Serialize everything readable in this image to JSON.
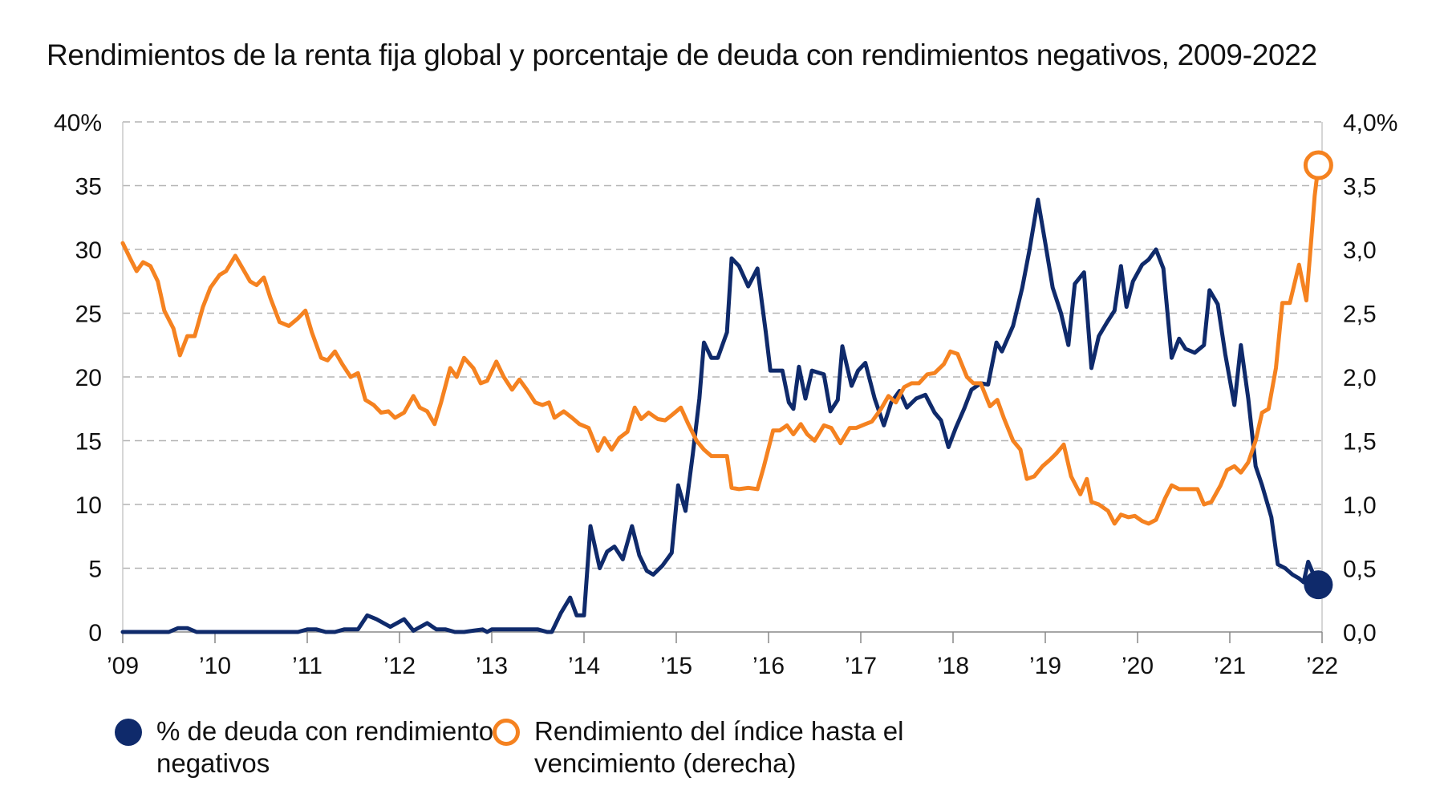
{
  "chart_data": {
    "type": "line",
    "title": "Rendimientos de la renta fija global y porcentaje de deuda con rendimientos negativos, 2009-2022",
    "x_ticks": [
      "’09",
      "’10",
      "’11",
      "’12",
      "’13",
      "’14",
      "’15",
      "’16",
      "’17",
      "’18",
      "’19",
      "’20",
      "’21",
      "’22"
    ],
    "x_range": [
      2009.0,
      2022.0
    ],
    "y_left": {
      "ylim": [
        0,
        40
      ],
      "ticks": [
        "0",
        "5",
        "10",
        "15",
        "20",
        "25",
        "30",
        "35",
        "40%"
      ]
    },
    "y_right": {
      "ylim": [
        0,
        4
      ],
      "ticks": [
        "0,0",
        "0,5",
        "1,0",
        "1,5",
        "2,0",
        "2,5",
        "3,0",
        "3,5",
        "4,0%"
      ]
    },
    "grid": true,
    "legend_position": "bottom",
    "series": [
      {
        "name": "% de deuda con rendimientos negativos",
        "color": "#0f2a6b",
        "axis": "left",
        "points": [
          [
            2009.0,
            0
          ],
          [
            2009.5,
            0
          ],
          [
            2009.6,
            0.3
          ],
          [
            2009.7,
            0.3
          ],
          [
            2009.8,
            0
          ],
          [
            2010.0,
            0
          ],
          [
            2010.5,
            0
          ],
          [
            2010.9,
            0
          ],
          [
            2011.0,
            0.2
          ],
          [
            2011.1,
            0.2
          ],
          [
            2011.2,
            0
          ],
          [
            2011.3,
            0
          ],
          [
            2011.4,
            0.2
          ],
          [
            2011.55,
            0.2
          ],
          [
            2011.65,
            1.3
          ],
          [
            2011.75,
            1.0
          ],
          [
            2011.9,
            0.4
          ],
          [
            2012.05,
            1.0
          ],
          [
            2012.15,
            0.1
          ],
          [
            2012.3,
            0.7
          ],
          [
            2012.4,
            0.2
          ],
          [
            2012.5,
            0.2
          ],
          [
            2012.6,
            0.0
          ],
          [
            2012.7,
            0.0
          ],
          [
            2012.8,
            0.1
          ],
          [
            2012.9,
            0.2
          ],
          [
            2012.95,
            0.0
          ],
          [
            2013.0,
            0.2
          ],
          [
            2013.5,
            0.2
          ],
          [
            2013.6,
            0.0
          ],
          [
            2013.65,
            0.0
          ],
          [
            2013.75,
            1.5
          ],
          [
            2013.85,
            2.7
          ],
          [
            2013.92,
            1.3
          ],
          [
            2014.0,
            1.3
          ],
          [
            2014.07,
            8.3
          ],
          [
            2014.17,
            5.0
          ],
          [
            2014.25,
            6.3
          ],
          [
            2014.33,
            6.7
          ],
          [
            2014.42,
            5.7
          ],
          [
            2014.52,
            8.3
          ],
          [
            2014.6,
            6.0
          ],
          [
            2014.68,
            4.8
          ],
          [
            2014.75,
            4.5
          ],
          [
            2014.85,
            5.2
          ],
          [
            2014.95,
            6.2
          ],
          [
            2015.02,
            11.5
          ],
          [
            2015.1,
            9.5
          ],
          [
            2015.18,
            14.0
          ],
          [
            2015.25,
            18.3
          ],
          [
            2015.3,
            22.7
          ],
          [
            2015.38,
            21.5
          ],
          [
            2015.45,
            21.5
          ],
          [
            2015.55,
            23.5
          ],
          [
            2015.6,
            29.3
          ],
          [
            2015.68,
            28.7
          ],
          [
            2015.78,
            27.1
          ],
          [
            2015.88,
            28.5
          ],
          [
            2015.97,
            23.5
          ],
          [
            2016.02,
            20.5
          ],
          [
            2016.15,
            20.5
          ],
          [
            2016.22,
            18.0
          ],
          [
            2016.27,
            17.5
          ],
          [
            2016.33,
            20.8
          ],
          [
            2016.4,
            18.3
          ],
          [
            2016.47,
            20.5
          ],
          [
            2016.6,
            20.2
          ],
          [
            2016.67,
            17.3
          ],
          [
            2016.75,
            18.2
          ],
          [
            2016.8,
            22.4
          ],
          [
            2016.9,
            19.3
          ],
          [
            2016.97,
            20.5
          ],
          [
            2017.05,
            21.1
          ],
          [
            2017.15,
            18.3
          ],
          [
            2017.25,
            16.2
          ],
          [
            2017.33,
            18.0
          ],
          [
            2017.42,
            18.9
          ],
          [
            2017.5,
            17.6
          ],
          [
            2017.6,
            18.3
          ],
          [
            2017.7,
            18.6
          ],
          [
            2017.8,
            17.2
          ],
          [
            2017.87,
            16.6
          ],
          [
            2017.95,
            14.5
          ],
          [
            2018.03,
            16.0
          ],
          [
            2018.12,
            17.5
          ],
          [
            2018.2,
            19.0
          ],
          [
            2018.3,
            19.5
          ],
          [
            2018.38,
            19.4
          ],
          [
            2018.47,
            22.7
          ],
          [
            2018.53,
            22.0
          ],
          [
            2018.65,
            24.0
          ],
          [
            2018.75,
            27.0
          ],
          [
            2018.83,
            30.0
          ],
          [
            2018.92,
            33.9
          ],
          [
            2019.0,
            30.5
          ],
          [
            2019.08,
            27.0
          ],
          [
            2019.17,
            25.0
          ],
          [
            2019.25,
            22.5
          ],
          [
            2019.32,
            27.3
          ],
          [
            2019.42,
            28.2
          ],
          [
            2019.5,
            20.7
          ],
          [
            2019.58,
            23.2
          ],
          [
            2019.67,
            24.3
          ],
          [
            2019.75,
            25.2
          ],
          [
            2019.82,
            28.7
          ],
          [
            2019.88,
            25.5
          ],
          [
            2019.95,
            27.5
          ],
          [
            2020.05,
            28.8
          ],
          [
            2020.12,
            29.2
          ],
          [
            2020.2,
            30.0
          ],
          [
            2020.28,
            28.5
          ],
          [
            2020.37,
            21.5
          ],
          [
            2020.45,
            23.0
          ],
          [
            2020.52,
            22.2
          ],
          [
            2020.62,
            21.9
          ],
          [
            2020.72,
            22.5
          ],
          [
            2020.78,
            26.8
          ],
          [
            2020.87,
            25.7
          ],
          [
            2020.95,
            21.8
          ],
          [
            2021.05,
            17.8
          ],
          [
            2021.12,
            22.5
          ],
          [
            2021.2,
            18.3
          ],
          [
            2021.28,
            13.0
          ],
          [
            2021.35,
            11.5
          ],
          [
            2021.45,
            9.0
          ],
          [
            2021.52,
            5.3
          ],
          [
            2021.6,
            5.0
          ],
          [
            2021.68,
            4.5
          ],
          [
            2021.75,
            4.2
          ],
          [
            2021.8,
            3.9
          ],
          [
            2021.85,
            5.5
          ],
          [
            2021.92,
            4.3
          ],
          [
            2021.96,
            3.7
          ]
        ],
        "end_marker": "filled-circle"
      },
      {
        "name": "Rendimiento del índice hasta el vencimiento (derecha)",
        "color": "#f58220",
        "axis": "right",
        "points": [
          [
            2009.0,
            3.05
          ],
          [
            2009.08,
            2.93
          ],
          [
            2009.15,
            2.83
          ],
          [
            2009.22,
            2.9
          ],
          [
            2009.3,
            2.87
          ],
          [
            2009.38,
            2.75
          ],
          [
            2009.45,
            2.52
          ],
          [
            2009.55,
            2.38
          ],
          [
            2009.62,
            2.17
          ],
          [
            2009.7,
            2.32
          ],
          [
            2009.78,
            2.32
          ],
          [
            2009.87,
            2.55
          ],
          [
            2009.95,
            2.7
          ],
          [
            2010.05,
            2.8
          ],
          [
            2010.12,
            2.83
          ],
          [
            2010.22,
            2.95
          ],
          [
            2010.3,
            2.85
          ],
          [
            2010.38,
            2.75
          ],
          [
            2010.45,
            2.72
          ],
          [
            2010.53,
            2.78
          ],
          [
            2010.6,
            2.62
          ],
          [
            2010.7,
            2.43
          ],
          [
            2010.8,
            2.4
          ],
          [
            2010.9,
            2.46
          ],
          [
            2010.98,
            2.52
          ],
          [
            2011.05,
            2.35
          ],
          [
            2011.15,
            2.15
          ],
          [
            2011.22,
            2.13
          ],
          [
            2011.3,
            2.2
          ],
          [
            2011.38,
            2.1
          ],
          [
            2011.47,
            2.0
          ],
          [
            2011.55,
            2.03
          ],
          [
            2011.63,
            1.82
          ],
          [
            2011.72,
            1.78
          ],
          [
            2011.8,
            1.72
          ],
          [
            2011.88,
            1.73
          ],
          [
            2011.95,
            1.68
          ],
          [
            2012.05,
            1.72
          ],
          [
            2012.15,
            1.85
          ],
          [
            2012.22,
            1.76
          ],
          [
            2012.3,
            1.73
          ],
          [
            2012.38,
            1.63
          ],
          [
            2012.45,
            1.8
          ],
          [
            2012.55,
            2.07
          ],
          [
            2012.62,
            2.0
          ],
          [
            2012.7,
            2.15
          ],
          [
            2012.8,
            2.07
          ],
          [
            2012.88,
            1.95
          ],
          [
            2012.95,
            1.97
          ],
          [
            2013.05,
            2.12
          ],
          [
            2013.13,
            2.0
          ],
          [
            2013.22,
            1.9
          ],
          [
            2013.3,
            1.98
          ],
          [
            2013.38,
            1.9
          ],
          [
            2013.47,
            1.8
          ],
          [
            2013.55,
            1.78
          ],
          [
            2013.62,
            1.8
          ],
          [
            2013.68,
            1.68
          ],
          [
            2013.78,
            1.73
          ],
          [
            2013.87,
            1.68
          ],
          [
            2013.95,
            1.63
          ],
          [
            2014.05,
            1.6
          ],
          [
            2014.15,
            1.42
          ],
          [
            2014.22,
            1.52
          ],
          [
            2014.3,
            1.43
          ],
          [
            2014.38,
            1.52
          ],
          [
            2014.47,
            1.57
          ],
          [
            2014.55,
            1.76
          ],
          [
            2014.62,
            1.67
          ],
          [
            2014.7,
            1.72
          ],
          [
            2014.8,
            1.67
          ],
          [
            2014.88,
            1.66
          ],
          [
            2014.95,
            1.7
          ],
          [
            2015.05,
            1.76
          ],
          [
            2015.13,
            1.63
          ],
          [
            2015.22,
            1.5
          ],
          [
            2015.3,
            1.43
          ],
          [
            2015.38,
            1.38
          ],
          [
            2015.45,
            1.38
          ],
          [
            2015.55,
            1.38
          ],
          [
            2015.6,
            1.13
          ],
          [
            2015.68,
            1.12
          ],
          [
            2015.78,
            1.13
          ],
          [
            2015.88,
            1.12
          ],
          [
            2015.95,
            1.3
          ],
          [
            2016.05,
            1.58
          ],
          [
            2016.12,
            1.58
          ],
          [
            2016.2,
            1.62
          ],
          [
            2016.27,
            1.55
          ],
          [
            2016.35,
            1.63
          ],
          [
            2016.42,
            1.55
          ],
          [
            2016.5,
            1.5
          ],
          [
            2016.6,
            1.62
          ],
          [
            2016.68,
            1.6
          ],
          [
            2016.78,
            1.48
          ],
          [
            2016.88,
            1.6
          ],
          [
            2016.95,
            1.6
          ],
          [
            2017.05,
            1.63
          ],
          [
            2017.12,
            1.65
          ],
          [
            2017.22,
            1.75
          ],
          [
            2017.3,
            1.85
          ],
          [
            2017.38,
            1.8
          ],
          [
            2017.47,
            1.92
          ],
          [
            2017.55,
            1.95
          ],
          [
            2017.63,
            1.95
          ],
          [
            2017.72,
            2.02
          ],
          [
            2017.8,
            2.03
          ],
          [
            2017.9,
            2.1
          ],
          [
            2017.97,
            2.2
          ],
          [
            2018.05,
            2.18
          ],
          [
            2018.15,
            2.0
          ],
          [
            2018.22,
            1.95
          ],
          [
            2018.3,
            1.95
          ],
          [
            2018.4,
            1.77
          ],
          [
            2018.48,
            1.82
          ],
          [
            2018.55,
            1.68
          ],
          [
            2018.65,
            1.5
          ],
          [
            2018.73,
            1.43
          ],
          [
            2018.8,
            1.2
          ],
          [
            2018.88,
            1.22
          ],
          [
            2018.97,
            1.3
          ],
          [
            2019.05,
            1.35
          ],
          [
            2019.12,
            1.4
          ],
          [
            2019.2,
            1.47
          ],
          [
            2019.28,
            1.22
          ],
          [
            2019.38,
            1.08
          ],
          [
            2019.45,
            1.2
          ],
          [
            2019.5,
            1.02
          ],
          [
            2019.58,
            1.0
          ],
          [
            2019.68,
            0.95
          ],
          [
            2019.75,
            0.85
          ],
          [
            2019.82,
            0.92
          ],
          [
            2019.9,
            0.9
          ],
          [
            2019.97,
            0.91
          ],
          [
            2020.05,
            0.87
          ],
          [
            2020.12,
            0.85
          ],
          [
            2020.2,
            0.88
          ],
          [
            2020.3,
            1.05
          ],
          [
            2020.37,
            1.15
          ],
          [
            2020.45,
            1.12
          ],
          [
            2020.55,
            1.12
          ],
          [
            2020.65,
            1.12
          ],
          [
            2020.72,
            1.0
          ],
          [
            2020.8,
            1.02
          ],
          [
            2020.9,
            1.15
          ],
          [
            2020.97,
            1.27
          ],
          [
            2021.05,
            1.3
          ],
          [
            2021.12,
            1.25
          ],
          [
            2021.2,
            1.33
          ],
          [
            2021.28,
            1.5
          ],
          [
            2021.35,
            1.72
          ],
          [
            2021.42,
            1.75
          ],
          [
            2021.5,
            2.07
          ],
          [
            2021.57,
            2.58
          ],
          [
            2021.65,
            2.58
          ],
          [
            2021.75,
            2.88
          ],
          [
            2021.83,
            2.6
          ],
          [
            2021.88,
            3.05
          ],
          [
            2021.92,
            3.42
          ],
          [
            2021.96,
            3.66
          ]
        ],
        "end_marker": "hollow-circle"
      }
    ]
  }
}
